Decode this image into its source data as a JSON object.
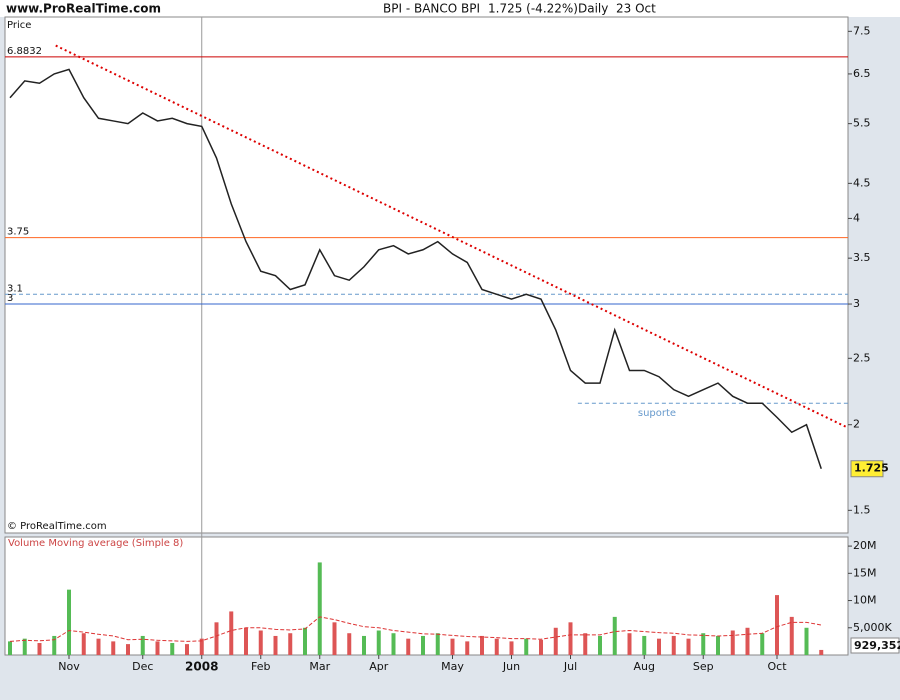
{
  "header": {
    "site": "www.ProRealTime.com",
    "title": "BPI - BANCO BPI",
    "quote": "1.725 (-4.22%)",
    "period": "Daily  23 Oct"
  },
  "chart_data": [
    {
      "type": "line",
      "panel_label": "Price",
      "footer": "© ProRealTime.com",
      "log_scale": true,
      "color": "#222222",
      "categories": [
        null,
        null,
        null,
        null,
        "Nov",
        null,
        null,
        null,
        null,
        "Dec",
        null,
        null,
        null,
        "2008",
        null,
        null,
        null,
        "Feb",
        null,
        null,
        null,
        "Mar",
        null,
        null,
        null,
        "Apr",
        null,
        null,
        null,
        null,
        "May",
        null,
        null,
        null,
        "Jun",
        null,
        null,
        null,
        "Jul",
        null,
        null,
        null,
        null,
        "Aug",
        null,
        null,
        null,
        "Sep",
        null,
        null,
        null,
        null,
        "Oct",
        null,
        null,
        null
      ],
      "values": [
        6.0,
        6.35,
        6.3,
        6.5,
        6.6,
        6.0,
        5.6,
        5.55,
        5.5,
        5.7,
        5.55,
        5.6,
        5.5,
        5.45,
        4.9,
        4.2,
        3.7,
        3.35,
        3.3,
        3.15,
        3.2,
        3.6,
        3.3,
        3.25,
        3.4,
        3.6,
        3.65,
        3.55,
        3.6,
        3.7,
        3.55,
        3.45,
        3.15,
        3.1,
        3.05,
        3.1,
        3.05,
        2.75,
        2.4,
        2.3,
        2.3,
        2.75,
        2.4,
        2.4,
        2.35,
        2.25,
        2.2,
        2.25,
        2.3,
        2.2,
        2.15,
        2.15,
        2.05,
        1.95,
        2.0,
        1.725
      ],
      "value_labels": [
        null,
        null,
        null,
        null,
        null,
        null,
        null,
        null,
        null,
        null,
        null,
        null,
        null,
        null,
        null,
        null,
        null,
        null,
        null,
        null,
        null,
        null,
        null,
        null,
        null,
        null,
        null,
        null,
        null,
        null,
        null,
        null,
        null,
        null,
        null,
        null,
        null,
        null,
        null,
        null,
        null,
        null,
        null,
        null,
        null,
        null,
        null,
        null,
        null,
        null,
        null,
        null,
        null,
        null,
        null,
        "1.725"
      ],
      "ylim": [
        1.39,
        7.87
      ],
      "yticks": [
        1.5,
        2,
        2.5,
        3,
        3.5,
        4,
        4.5,
        5.5,
        6.5,
        7.5
      ],
      "levels": [
        {
          "value": 6.8832,
          "label": "6.8832",
          "color": "#cc0000",
          "dashed": false
        },
        {
          "value": 3.75,
          "label": "3.75",
          "color": "#ff6622",
          "dashed": false
        },
        {
          "value": 3.1,
          "label": "3.1",
          "color": "#6699cc",
          "dashed": true
        },
        {
          "value": 3,
          "label": "3",
          "color": "#3366cc",
          "dashed": false
        }
      ],
      "support": {
        "value": 2.15,
        "label": "suporte",
        "from": 38.5,
        "color": "#6699cc"
      },
      "trendline": {
        "x": [
          3.1,
          56.8
        ],
        "y": [
          7.15,
          1.98
        ],
        "color": "#dd0000"
      }
    },
    {
      "type": "bar",
      "panel_label": "Volume Moving average (Simple 8)",
      "up_color": "#55bb55",
      "down_color": "#dd5555",
      "ma_color": "#dd3333",
      "values": [
        2500000,
        3000000,
        2200000,
        3500000,
        12000000,
        4000000,
        3000000,
        2500000,
        2000000,
        3500000,
        2500000,
        2200000,
        2000000,
        3000000,
        6000000,
        8000000,
        5000000,
        4500000,
        3500000,
        4000000,
        5000000,
        17000000,
        6000000,
        4000000,
        3500000,
        4500000,
        4000000,
        3000000,
        3500000,
        4000000,
        3000000,
        2500000,
        3500000,
        3000000,
        2500000,
        3000000,
        2800000,
        5000000,
        6000000,
        4000000,
        3500000,
        7000000,
        4000000,
        3500000,
        3000000,
        3500000,
        3000000,
        4000000,
        3500000,
        4500000,
        5000000,
        4000000,
        11000000,
        7000000,
        5000000,
        929352
      ],
      "value_labels": [
        null,
        null,
        null,
        null,
        null,
        null,
        null,
        null,
        null,
        null,
        null,
        null,
        null,
        null,
        null,
        null,
        null,
        null,
        null,
        null,
        null,
        null,
        null,
        null,
        null,
        null,
        null,
        null,
        null,
        null,
        null,
        null,
        null,
        null,
        null,
        null,
        null,
        null,
        null,
        null,
        null,
        null,
        null,
        null,
        null,
        null,
        null,
        null,
        null,
        null,
        null,
        null,
        null,
        null,
        null,
        "929,352"
      ],
      "ma_values": [
        2500000,
        2700000,
        2600000,
        2800000,
        4500000,
        4200000,
        3800000,
        3500000,
        2800000,
        2900000,
        2700000,
        2600000,
        2500000,
        2600000,
        3500000,
        4500000,
        5000000,
        5000000,
        4700000,
        4600000,
        4800000,
        7000000,
        6500000,
        5800000,
        5200000,
        5000000,
        4500000,
        4200000,
        3900000,
        3800000,
        3600000,
        3400000,
        3300000,
        3200000,
        3000000,
        3000000,
        2900000,
        3300000,
        3700000,
        3700000,
        3700000,
        4300000,
        4500000,
        4300000,
        4100000,
        4000000,
        3700000,
        3600000,
        3500000,
        3600000,
        3800000,
        4000000,
        5200000,
        6000000,
        6000000,
        5500000
      ],
      "ylim": [
        0,
        21670000
      ],
      "yticks": [
        {
          "value": 5000000,
          "label": "5,000K"
        },
        {
          "value": 10000000,
          "label": "10M"
        },
        {
          "value": 15000000,
          "label": "15M"
        },
        {
          "value": 20000000,
          "label": "20M"
        }
      ]
    }
  ]
}
